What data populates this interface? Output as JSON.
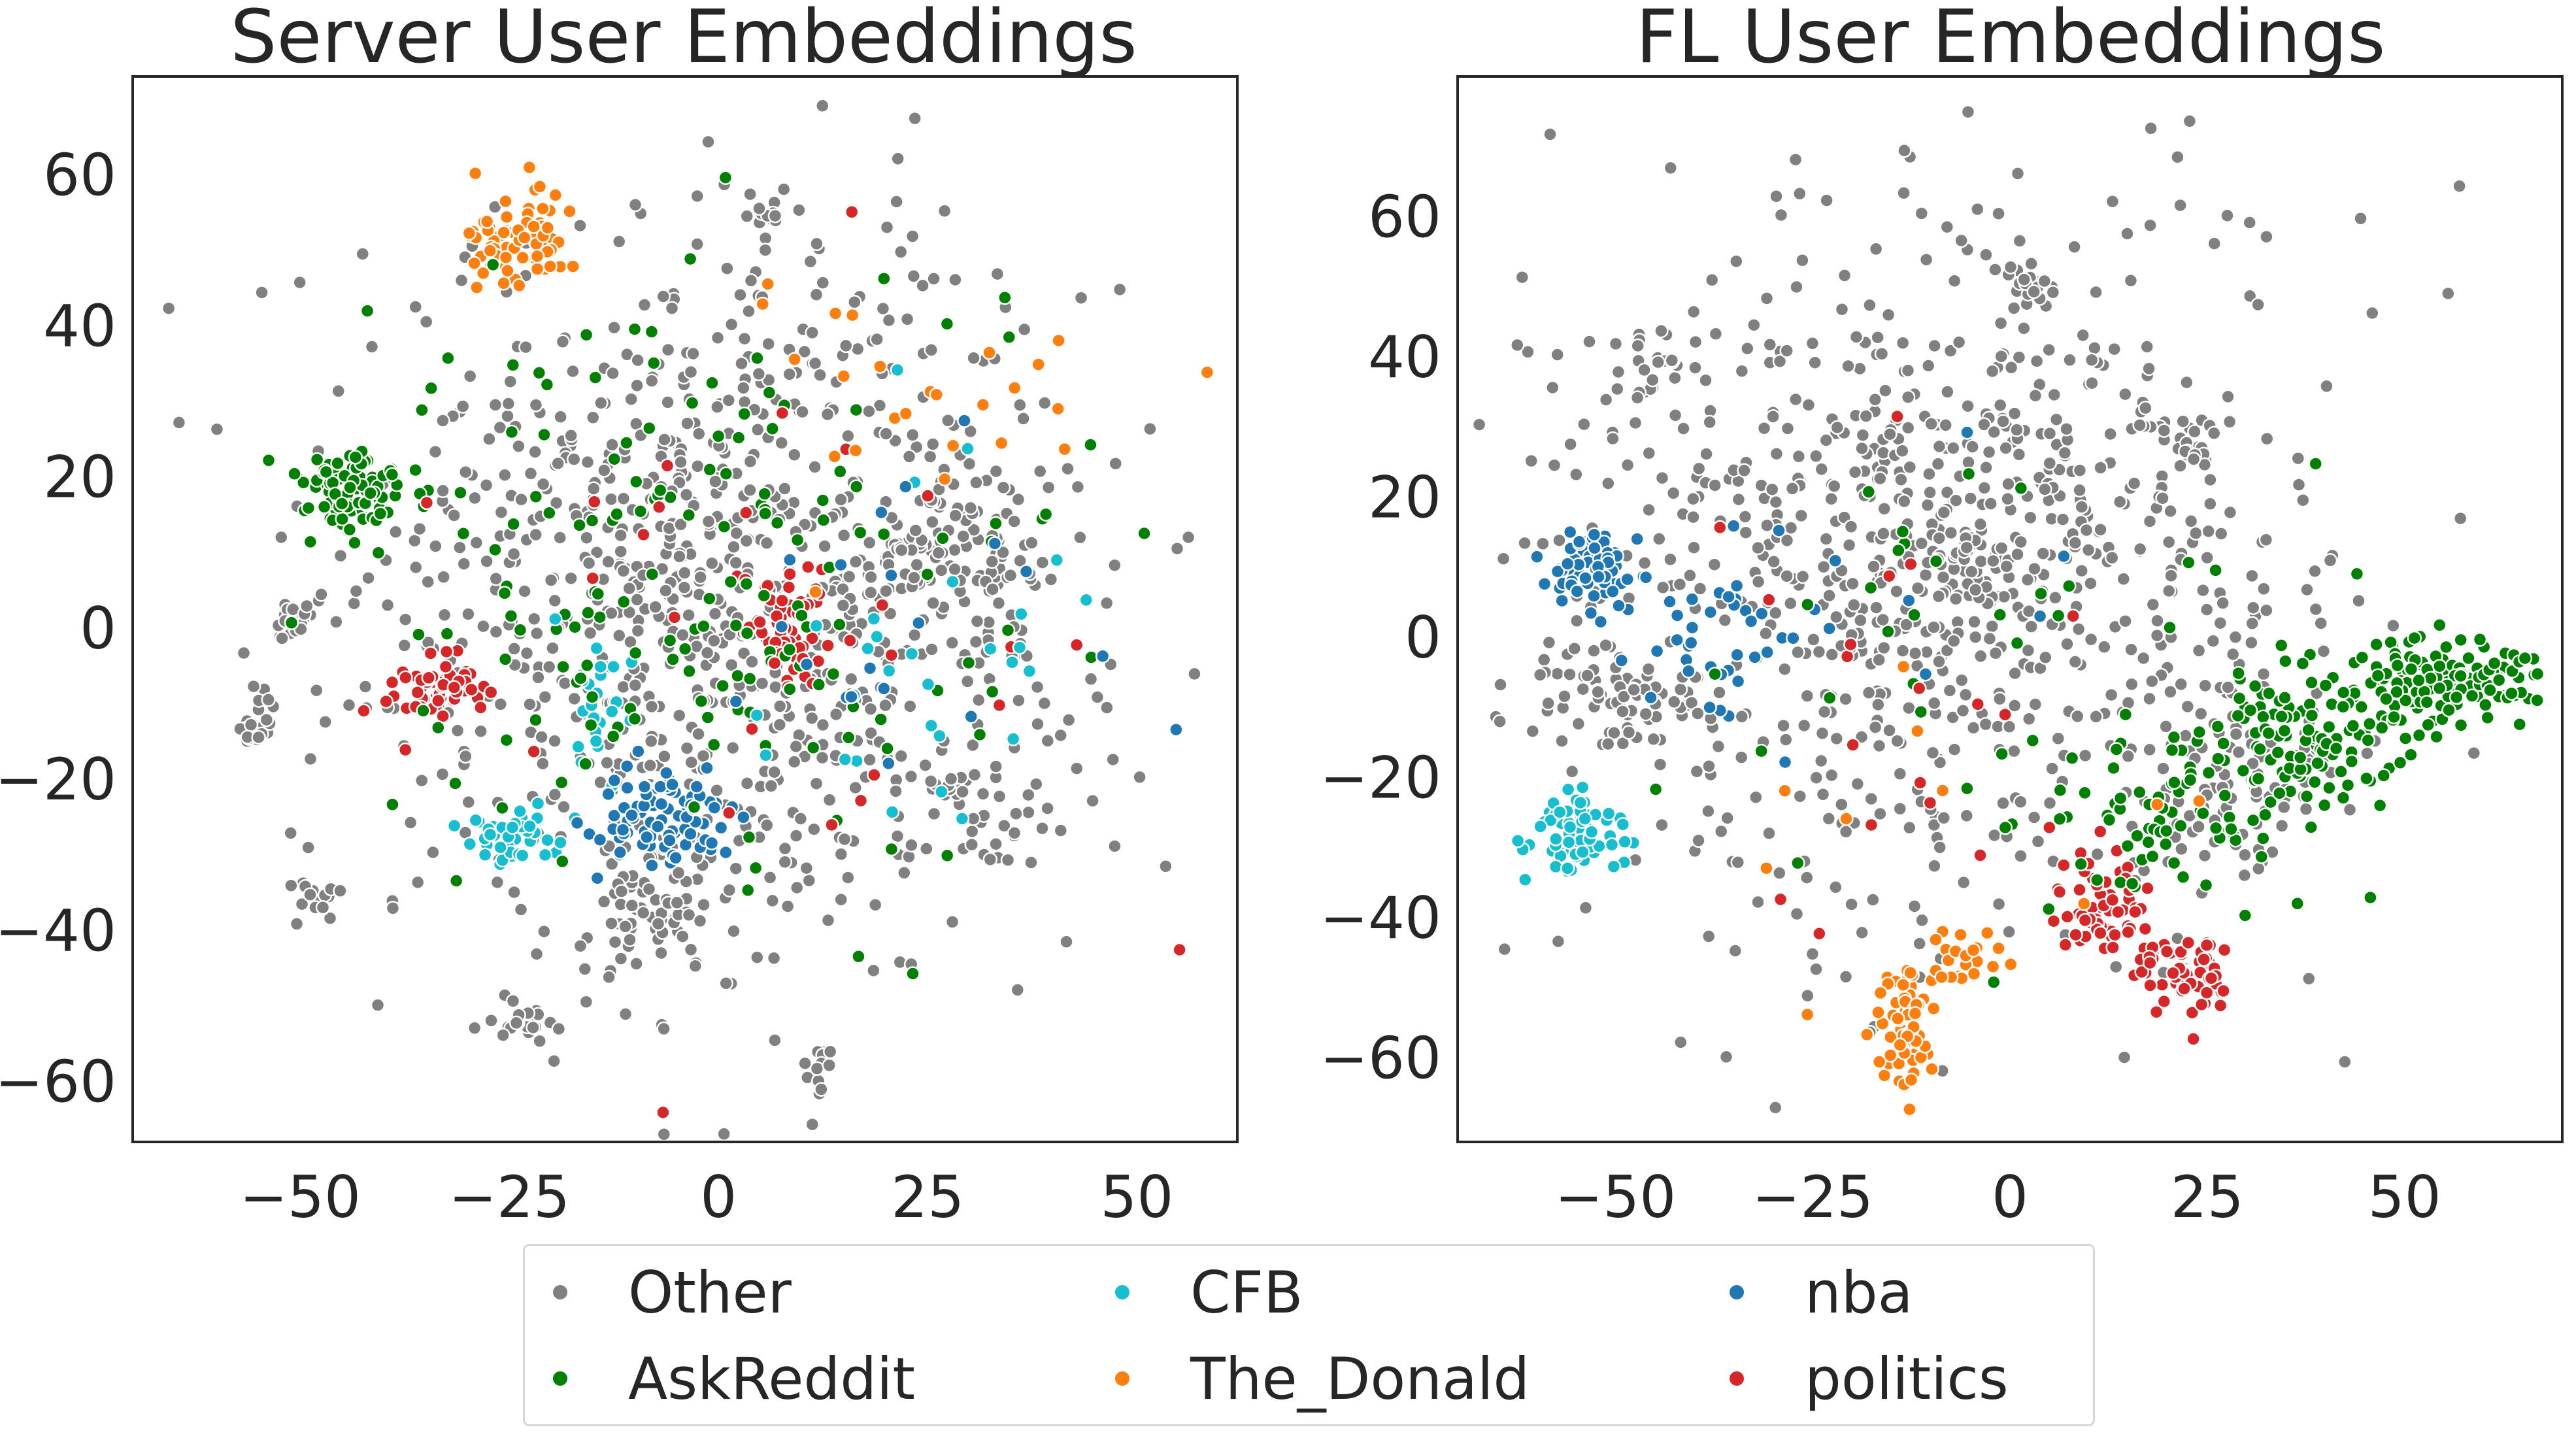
{
  "legend": {
    "entries": [
      {
        "name": "Other",
        "color": "#808080"
      },
      {
        "name": "AskReddit",
        "color": "#008000"
      },
      {
        "name": "CFB",
        "color": "#17becf"
      },
      {
        "name": "The_Donald",
        "color": "#ff7f0e"
      },
      {
        "name": "nba",
        "color": "#1f77b4"
      },
      {
        "name": "politics",
        "color": "#d62728"
      }
    ]
  },
  "chart_data": [
    {
      "type": "scatter",
      "title": "Server User Embeddings",
      "xlabel": "",
      "ylabel": "",
      "xlim": [
        -70,
        62
      ],
      "ylim": [
        -68,
        73
      ],
      "xticks": [
        -50,
        -25,
        0,
        25,
        50
      ],
      "yticks": [
        -60,
        -40,
        -20,
        0,
        20,
        40,
        60
      ],
      "grid": false,
      "clusters": [
        {
          "series": "The_Donald",
          "cx": -24,
          "cy": 52,
          "sx": 3.5,
          "sy": 3.5,
          "n": 70
        },
        {
          "series": "AskReddit",
          "cx": -43,
          "cy": 18,
          "sx": 4,
          "sy": 2.5,
          "n": 90
        },
        {
          "series": "politics",
          "cx": -33,
          "cy": -8,
          "sx": 3,
          "sy": 2.5,
          "n": 60
        },
        {
          "series": "politics",
          "cx": 8,
          "cy": 0,
          "sx": 3,
          "sy": 4,
          "n": 60
        },
        {
          "series": "CFB",
          "cx": -25,
          "cy": -28,
          "sx": 2.5,
          "sy": 2,
          "n": 40
        },
        {
          "series": "CFB",
          "cx": -14,
          "cy": -12,
          "sx": 2,
          "sy": 4,
          "n": 25
        },
        {
          "series": "nba",
          "cx": -7,
          "cy": -25,
          "sx": 4,
          "sy": 3,
          "n": 90
        },
        {
          "series": "Other",
          "cx": -51,
          "cy": 1,
          "sx": 1.2,
          "sy": 1.2,
          "n": 25
        },
        {
          "series": "Other",
          "cx": -55,
          "cy": -13,
          "sx": 1.5,
          "sy": 2,
          "n": 20
        },
        {
          "series": "Other",
          "cx": -48,
          "cy": -35,
          "sx": 1.2,
          "sy": 1.5,
          "n": 15
        },
        {
          "series": "Other",
          "cx": -23,
          "cy": -52,
          "sx": 3,
          "sy": 1,
          "n": 20
        },
        {
          "series": "Other",
          "cx": 12,
          "cy": -58,
          "sx": 1,
          "sy": 1.5,
          "n": 12
        },
        {
          "series": "Other",
          "cx": 7,
          "cy": 54,
          "sx": 1.5,
          "sy": 2,
          "n": 15
        },
        {
          "series": "Other",
          "cx": 28,
          "cy": 9,
          "sx": 5,
          "sy": 5,
          "n": 90
        },
        {
          "series": "Other",
          "cx": -8,
          "cy": -38,
          "sx": 4,
          "sy": 4,
          "n": 60
        },
        {
          "series": "Other",
          "cx": 30,
          "cy": -25,
          "sx": 5,
          "sy": 4,
          "n": 40
        },
        {
          "series": "Other",
          "cx": 0,
          "cy": 5,
          "sx": 22,
          "sy": 24,
          "n": 950
        },
        {
          "series": "AskReddit",
          "cx": -5,
          "cy": 8,
          "sx": 20,
          "sy": 20,
          "n": 170
        },
        {
          "series": "politics",
          "cx": 5,
          "cy": 0,
          "sx": 20,
          "sy": 20,
          "n": 30
        },
        {
          "series": "CFB",
          "cx": 25,
          "cy": -5,
          "sx": 12,
          "sy": 12,
          "n": 30
        },
        {
          "series": "The_Donald",
          "cx": 25,
          "cy": 30,
          "sx": 12,
          "sy": 10,
          "n": 25
        },
        {
          "series": "nba",
          "cx": 20,
          "cy": 0,
          "sx": 12,
          "sy": 12,
          "n": 20
        }
      ]
    },
    {
      "type": "scatter",
      "title": "FL User Embeddings",
      "xlabel": "",
      "ylabel": "",
      "xlim": [
        -70,
        70
      ],
      "ylim": [
        -72,
        80
      ],
      "xticks": [
        -50,
        -25,
        0,
        25,
        50
      ],
      "yticks": [
        -60,
        -40,
        -20,
        0,
        20,
        40,
        60
      ],
      "grid": false,
      "clusters": [
        {
          "series": "nba",
          "cx": -53,
          "cy": 10,
          "sx": 3,
          "sy": 2.5,
          "n": 70
        },
        {
          "series": "nba",
          "cx": -38,
          "cy": 0,
          "sx": 6,
          "sy": 5,
          "n": 35
        },
        {
          "series": "CFB",
          "cx": -55,
          "cy": -28,
          "sx": 3,
          "sy": 3,
          "n": 70
        },
        {
          "series": "The_Donald",
          "cx": -13,
          "cy": -57,
          "sx": 1.5,
          "sy": 5,
          "n": 80
        },
        {
          "series": "The_Donald",
          "cx": -7,
          "cy": -46,
          "sx": 3,
          "sy": 2,
          "n": 20
        },
        {
          "series": "politics",
          "cx": 12,
          "cy": -38,
          "sx": 3,
          "sy": 4,
          "n": 60
        },
        {
          "series": "politics",
          "cx": 22,
          "cy": -48,
          "sx": 3,
          "sy": 3,
          "n": 60
        },
        {
          "series": "AskReddit",
          "cx": 55,
          "cy": -6,
          "sx": 6,
          "sy": 3,
          "n": 150
        },
        {
          "series": "AskReddit",
          "cx": 38,
          "cy": -14,
          "sx": 6,
          "sy": 5,
          "n": 100
        },
        {
          "series": "AskReddit",
          "cx": 20,
          "cy": -25,
          "sx": 8,
          "sy": 7,
          "n": 80
        },
        {
          "series": "Other",
          "cx": -45,
          "cy": 40,
          "sx": 2,
          "sy": 3,
          "n": 20
        },
        {
          "series": "Other",
          "cx": 3,
          "cy": 50,
          "sx": 2,
          "sy": 2,
          "n": 20
        },
        {
          "series": "Other",
          "cx": -50,
          "cy": -8,
          "sx": 6,
          "sy": 4,
          "n": 70
        },
        {
          "series": "Other",
          "cx": 22,
          "cy": 28,
          "sx": 2,
          "sy": 2,
          "n": 20
        },
        {
          "series": "Other",
          "cx": 28,
          "cy": -18,
          "sx": 8,
          "sy": 8,
          "n": 100
        },
        {
          "series": "Other",
          "cx": -5,
          "cy": 10,
          "sx": 3,
          "sy": 3,
          "n": 30
        },
        {
          "series": "Other",
          "cx": -10,
          "cy": 10,
          "sx": 24,
          "sy": 25,
          "n": 850
        },
        {
          "series": "AskReddit",
          "cx": 0,
          "cy": 0,
          "sx": 20,
          "sy": 20,
          "n": 40
        },
        {
          "series": "politics",
          "cx": -10,
          "cy": -10,
          "sx": 20,
          "sy": 20,
          "n": 20
        },
        {
          "series": "The_Donald",
          "cx": -15,
          "cy": -20,
          "sx": 15,
          "sy": 15,
          "n": 10
        },
        {
          "series": "nba",
          "cx": -20,
          "cy": 5,
          "sx": 15,
          "sy": 15,
          "n": 12
        }
      ]
    }
  ]
}
